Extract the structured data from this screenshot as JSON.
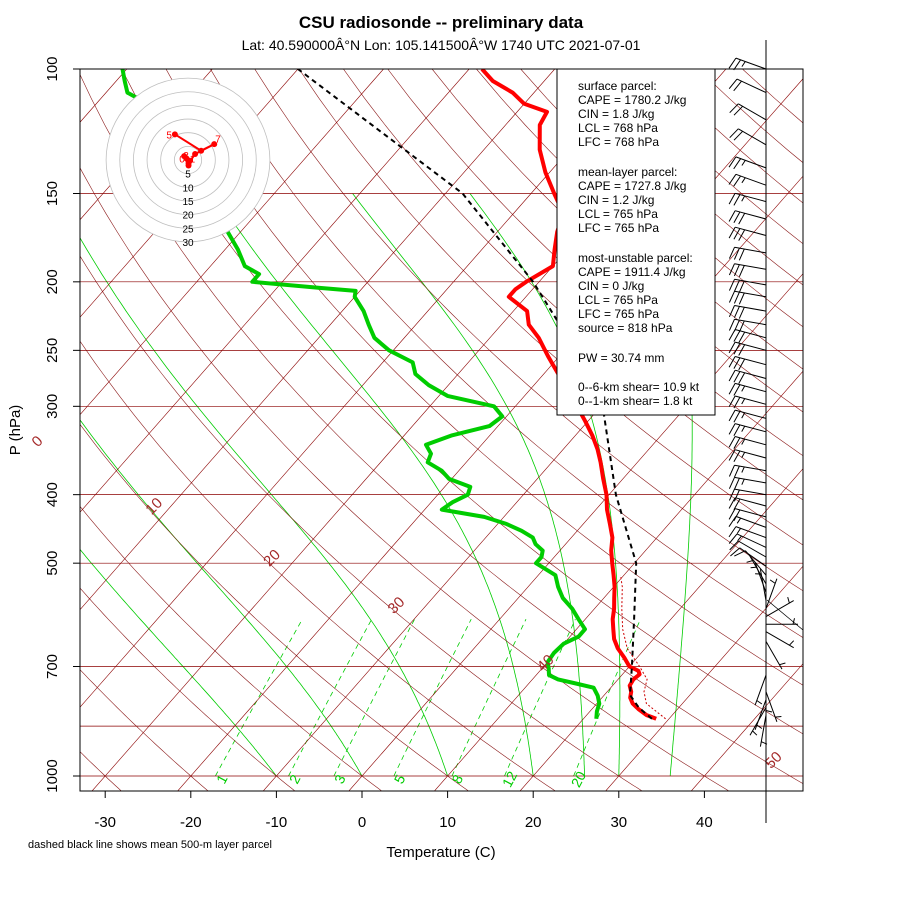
{
  "chart_data": {
    "type": "skew-t",
    "title": "CSU radiosonde -- preliminary data",
    "subtitle": "Lat: 40.590000Â°N Lon: 105.141500Â°W    1740 UTC  2021-07-01",
    "xlabel": "Temperature (C)",
    "ylabel": "P (hPa)",
    "xlim": [
      -35,
      47
    ],
    "ylim": [
      1050,
      100
    ],
    "x_ticks": [
      -30,
      -20,
      -10,
      0,
      10,
      20,
      30,
      40
    ],
    "x_tick_labels": [
      "-30",
      "-20",
      "-10",
      "0",
      "10",
      "20",
      "30",
      "40"
    ],
    "p_ticks": [
      100,
      150,
      200,
      250,
      300,
      400,
      500,
      700,
      1000
    ],
    "p_tick_labels": [
      "100",
      "150",
      "200",
      "250",
      "300",
      "400",
      "500",
      "700",
      "1000"
    ],
    "isobars": [
      100,
      150,
      200,
      250,
      300,
      400,
      500,
      700,
      850,
      1000
    ],
    "isotherms": [
      -150,
      -140,
      -130,
      -120,
      -110,
      -100,
      -90,
      -80,
      -70,
      -60,
      -50,
      -40,
      -30,
      -20,
      -10,
      0,
      10,
      20,
      30,
      40
    ],
    "dry_adiabat_labels": [
      {
        "theta_c": 0,
        "label": "0",
        "p": 340
      },
      {
        "theta_c": 10,
        "label": "10",
        "p": 420
      },
      {
        "theta_c": 20,
        "label": "20",
        "p": 497
      },
      {
        "theta_c": 30,
        "label": "30",
        "p": 580
      },
      {
        "theta_c": 40,
        "label": "40",
        "p": 700
      },
      {
        "theta_c": 50,
        "label": "50",
        "p": 960
      }
    ],
    "mixing_ratios": [
      1,
      2,
      3,
      5,
      8,
      12,
      20
    ],
    "mixing_ratio_labels": [
      "1",
      "2",
      "3",
      "5",
      "8",
      "12",
      "20"
    ],
    "moist_adiabats_c": [
      -10,
      0,
      10,
      20,
      26,
      30,
      36
    ],
    "series": [
      {
        "name": "temperature",
        "color": "#ff0000",
        "points": [
          [
            830,
            28.5
          ],
          [
            820,
            27.0
          ],
          [
            805,
            25.5
          ],
          [
            790,
            24.2
          ],
          [
            775,
            23.3
          ],
          [
            760,
            22.8
          ],
          [
            745,
            22.0
          ],
          [
            730,
            21.8
          ],
          [
            718,
            22.0
          ],
          [
            710,
            21.5
          ],
          [
            700,
            20.0
          ],
          [
            680,
            18.5
          ],
          [
            660,
            16.8
          ],
          [
            640,
            15.4
          ],
          [
            620,
            14.3
          ],
          [
            600,
            13.2
          ],
          [
            580,
            12.3
          ],
          [
            560,
            11.2
          ],
          [
            540,
            10.1
          ],
          [
            520,
            8.8
          ],
          [
            500,
            7.4
          ],
          [
            480,
            6.0
          ],
          [
            460,
            4.8
          ],
          [
            440,
            3.1
          ],
          [
            420,
            1.3
          ],
          [
            400,
            -0.3
          ],
          [
            380,
            -2.3
          ],
          [
            360,
            -4.3
          ],
          [
            345,
            -6.0
          ],
          [
            330,
            -8.0
          ],
          [
            315,
            -10.3
          ],
          [
            300,
            -12.8
          ],
          [
            285,
            -15.5
          ],
          [
            270,
            -18.3
          ],
          [
            255,
            -21.3
          ],
          [
            240,
            -24.3
          ],
          [
            230,
            -26.8
          ],
          [
            220,
            -28.4
          ],
          [
            210,
            -32.0
          ],
          [
            205,
            -32.0
          ],
          [
            200,
            -31.5
          ],
          [
            190,
            -30.0
          ],
          [
            180,
            -31.5
          ],
          [
            170,
            -33.0
          ],
          [
            160,
            -34.2
          ],
          [
            150,
            -37.3
          ],
          [
            140,
            -40.5
          ],
          [
            130,
            -43.5
          ],
          [
            120,
            -46.0
          ],
          [
            115,
            -46.5
          ],
          [
            112,
            -50.0
          ],
          [
            108,
            -52.5
          ],
          [
            104,
            -56.0
          ],
          [
            100,
            -58.5
          ]
        ]
      },
      {
        "name": "dewpoint",
        "color": "#00cc00",
        "points": [
          [
            830,
            21.5
          ],
          [
            810,
            20.8
          ],
          [
            790,
            20.3
          ],
          [
            770,
            19.3
          ],
          [
            750,
            18.0
          ],
          [
            740,
            15.5
          ],
          [
            730,
            13.0
          ],
          [
            720,
            11.5
          ],
          [
            705,
            10.8
          ],
          [
            690,
            10.0
          ],
          [
            670,
            9.8
          ],
          [
            650,
            10.0
          ],
          [
            635,
            11.0
          ],
          [
            620,
            11.0
          ],
          [
            600,
            9.2
          ],
          [
            580,
            7.4
          ],
          [
            560,
            5.2
          ],
          [
            540,
            3.5
          ],
          [
            520,
            2.0
          ],
          [
            500,
            -1.5
          ],
          [
            490,
            -1.5
          ],
          [
            480,
            -2.0
          ],
          [
            470,
            -3.5
          ],
          [
            460,
            -4.5
          ],
          [
            450,
            -6.5
          ],
          [
            440,
            -9.0
          ],
          [
            430,
            -12.3
          ],
          [
            420,
            -18.0
          ],
          [
            410,
            -17.5
          ],
          [
            400,
            -16.5
          ],
          [
            390,
            -17.0
          ],
          [
            380,
            -20.3
          ],
          [
            370,
            -22.0
          ],
          [
            360,
            -24.5
          ],
          [
            350,
            -25.0
          ],
          [
            340,
            -26.5
          ],
          [
            330,
            -24.5
          ],
          [
            320,
            -21.0
          ],
          [
            310,
            -20.5
          ],
          [
            300,
            -22.5
          ],
          [
            290,
            -29.0
          ],
          [
            280,
            -32.3
          ],
          [
            270,
            -35.0
          ],
          [
            260,
            -36.5
          ],
          [
            250,
            -40.5
          ],
          [
            240,
            -43.5
          ],
          [
            230,
            -45.5
          ],
          [
            220,
            -47.5
          ],
          [
            210,
            -50.0
          ],
          [
            206,
            -50.5
          ],
          [
            204,
            -55.0
          ],
          [
            200,
            -63.5
          ],
          [
            195,
            -63.5
          ],
          [
            190,
            -66.0
          ],
          [
            180,
            -68.5
          ],
          [
            170,
            -71.5
          ],
          [
            160,
            -74.5
          ],
          [
            150,
            -78.0
          ],
          [
            140,
            -82.0
          ],
          [
            130,
            -86.5
          ],
          [
            120,
            -91.5
          ],
          [
            112,
            -94.0
          ],
          [
            108,
            -97.5
          ],
          [
            104,
            -99.0
          ],
          [
            100,
            -100.5
          ]
        ]
      },
      {
        "name": "parcel_mean_500m_layer",
        "color": "#000000",
        "style": "dashed",
        "points": [
          [
            830,
            28.0
          ],
          [
            800,
            25.3
          ],
          [
            768,
            23.0
          ],
          [
            700,
            20.3
          ],
          [
            600,
            15.7
          ],
          [
            500,
            10.2
          ],
          [
            400,
            0.8
          ],
          [
            300,
            -9.8
          ],
          [
            250,
            -18.7
          ],
          [
            200,
            -30.7
          ],
          [
            150,
            -48.0
          ],
          [
            100,
            -80.0
          ]
        ]
      },
      {
        "name": "virtual_temperature",
        "color": "#cc0000",
        "style": "dotted",
        "points": [
          [
            830,
            29.6
          ],
          [
            790,
            25.8
          ],
          [
            760,
            24.3
          ],
          [
            730,
            23.4
          ],
          [
            700,
            21.2
          ],
          [
            660,
            17.9
          ],
          [
            620,
            15.4
          ],
          [
            580,
            13.2
          ],
          [
            540,
            11.0
          ],
          [
            520,
            9.6
          ]
        ]
      }
    ],
    "stats_box": {
      "surface_header": "surface parcel:",
      "surface_cape": "CAPE = 1780.2 J/kg",
      "surface_cin": "CIN = 1.8 J/kg",
      "surface_lcl": "LCL = 768 hPa",
      "surface_lfc": "LFC = 768 hPa",
      "mean_header": "mean-layer parcel:",
      "mean_cape": "CAPE = 1727.8 J/kg",
      "mean_cin": "CIN = 1.2 J/kg",
      "mean_lcl": "LCL = 765 hPa",
      "mean_lfc": "LFC = 765 hPa",
      "mu_header": "most-unstable parcel:",
      "mu_cape": "CAPE = 1911.4 J/kg",
      "mu_cin": "CIN = 0 J/kg",
      "mu_lcl": "LCL = 765 hPa",
      "mu_lfc": "LFC = 765 hPa",
      "mu_source": "source = 818 hPa",
      "pw": "PW =  30.74 mm",
      "shear_6km": "0--6-km shear= 10.9 kt",
      "shear_1km": "0--1-km shear= 1.8 kt"
    },
    "hodograph": {
      "ring_values": [
        5,
        10,
        15,
        20,
        25,
        30
      ],
      "ring_labels": [
        "5",
        "10",
        "15",
        "20",
        "25",
        "30"
      ],
      "trace": [
        [
          0.2,
          -2
        ],
        [
          -1.4,
          1.4
        ],
        [
          -0.5,
          0.5
        ],
        [
          0.6,
          -0.3
        ],
        [
          0.2,
          -1.2
        ],
        [
          2.6,
          2.2
        ],
        [
          9.6,
          5.8
        ],
        [
          4.8,
          3.4
        ],
        [
          -4.8,
          9.4
        ]
      ],
      "point_labels": [
        {
          "text": "0",
          "u": -2.2,
          "v": 0.2
        },
        {
          "text": "1",
          "u": 1.6,
          "v": 0.2
        },
        {
          "text": "3",
          "u": -0.7,
          "v": 1.5
        },
        {
          "text": "5",
          "u": -6.9,
          "v": 9.0
        },
        {
          "text": "7",
          "u": 11.0,
          "v": 7.6
        }
      ]
    },
    "wind_barbs": [
      {
        "p": 100,
        "dir": 290,
        "spd": 25
      },
      {
        "p": 108,
        "dir": 295,
        "spd": 20
      },
      {
        "p": 118,
        "dir": 300,
        "spd": 20
      },
      {
        "p": 128,
        "dir": 300,
        "spd": 20
      },
      {
        "p": 138,
        "dir": 290,
        "spd": 25
      },
      {
        "p": 146,
        "dir": 290,
        "spd": 25
      },
      {
        "p": 154,
        "dir": 285,
        "spd": 25
      },
      {
        "p": 163,
        "dir": 285,
        "spd": 30
      },
      {
        "p": 172,
        "dir": 285,
        "spd": 30
      },
      {
        "p": 182,
        "dir": 280,
        "spd": 30
      },
      {
        "p": 192,
        "dir": 280,
        "spd": 30
      },
      {
        "p": 202,
        "dir": 280,
        "spd": 30
      },
      {
        "p": 210,
        "dir": 280,
        "spd": 30
      },
      {
        "p": 220,
        "dir": 280,
        "spd": 30
      },
      {
        "p": 230,
        "dir": 280,
        "spd": 30
      },
      {
        "p": 240,
        "dir": 285,
        "spd": 30
      },
      {
        "p": 250,
        "dir": 285,
        "spd": 30
      },
      {
        "p": 262,
        "dir": 285,
        "spd": 30
      },
      {
        "p": 274,
        "dir": 285,
        "spd": 30
      },
      {
        "p": 286,
        "dir": 285,
        "spd": 25
      },
      {
        "p": 298,
        "dir": 285,
        "spd": 25
      },
      {
        "p": 312,
        "dir": 285,
        "spd": 25
      },
      {
        "p": 326,
        "dir": 285,
        "spd": 25
      },
      {
        "p": 340,
        "dir": 285,
        "spd": 25
      },
      {
        "p": 355,
        "dir": 285,
        "spd": 25
      },
      {
        "p": 370,
        "dir": 280,
        "spd": 25
      },
      {
        "p": 385,
        "dir": 280,
        "spd": 25
      },
      {
        "p": 400,
        "dir": 280,
        "spd": 20
      },
      {
        "p": 415,
        "dir": 285,
        "spd": 20
      },
      {
        "p": 430,
        "dir": 285,
        "spd": 20
      },
      {
        "p": 445,
        "dir": 290,
        "spd": 15
      },
      {
        "p": 460,
        "dir": 290,
        "spd": 15
      },
      {
        "p": 475,
        "dir": 295,
        "spd": 15
      },
      {
        "p": 490,
        "dir": 300,
        "spd": 10
      },
      {
        "p": 505,
        "dir": 305,
        "spd": 10
      },
      {
        "p": 520,
        "dir": 320,
        "spd": 10
      },
      {
        "p": 535,
        "dir": 330,
        "spd": 5
      },
      {
        "p": 550,
        "dir": 340,
        "spd": 5
      },
      {
        "p": 565,
        "dir": 350,
        "spd": 5
      },
      {
        "p": 580,
        "dir": 20,
        "spd": 5
      },
      {
        "p": 595,
        "dir": 60,
        "spd": 5
      },
      {
        "p": 610,
        "dir": 90,
        "spd": 5
      },
      {
        "p": 625,
        "dir": 120,
        "spd": 5
      },
      {
        "p": 645,
        "dir": 150,
        "spd": 5
      },
      {
        "p": 720,
        "dir": 200,
        "spd": 5
      },
      {
        "p": 740,
        "dir": 180,
        "spd": 5
      },
      {
        "p": 760,
        "dir": 160,
        "spd": 5
      },
      {
        "p": 780,
        "dir": 200,
        "spd": 5
      },
      {
        "p": 800,
        "dir": 210,
        "spd": 5
      },
      {
        "p": 820,
        "dir": 190,
        "spd": 5
      }
    ],
    "footnote": "dashed black line shows mean 500-m layer parcel"
  },
  "colors": {
    "isobar": "#8b0000",
    "isotherm": "#8b0000",
    "dry_adiabat": "#8b1a1a",
    "moist_adiabat": "#00cc00",
    "mixing_ratio": "#00cc00",
    "temperature": "#ff0000",
    "dewpoint": "#00cc00",
    "parcel": "#000000",
    "adiabat_label": "#a52a2a",
    "hodo_ring": "#bfbfbf",
    "hodo_trace": "#ff0000"
  }
}
